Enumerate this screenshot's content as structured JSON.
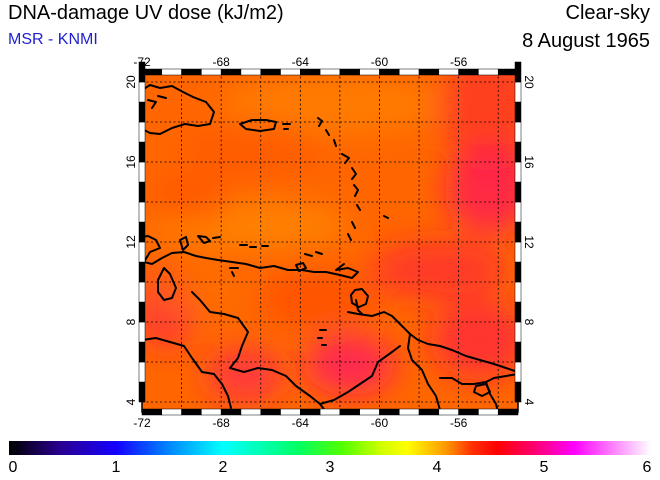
{
  "header": {
    "title": "DNA-damage UV dose (kJ/m2)",
    "source": "MSR - KNMI",
    "mode": "Clear-sky",
    "date": "8 August 1965"
  },
  "map": {
    "lon_range": [
      -72,
      -53
    ],
    "lat_range": [
      3.5,
      20.5
    ],
    "lon_ticks": [
      "-72",
      "-68",
      "-64",
      "-60",
      "-56"
    ],
    "lat_ticks": [
      "20",
      "16",
      "12",
      "8",
      "4"
    ],
    "grid_lon_step": 2,
    "grid_lat_step": 2,
    "colors": {
      "background": "#ff6a00",
      "coast": "#000000",
      "grid": "#000000"
    }
  },
  "colorbar": {
    "labels": [
      "0",
      "1",
      "2",
      "3",
      "4",
      "5",
      "6"
    ]
  }
}
